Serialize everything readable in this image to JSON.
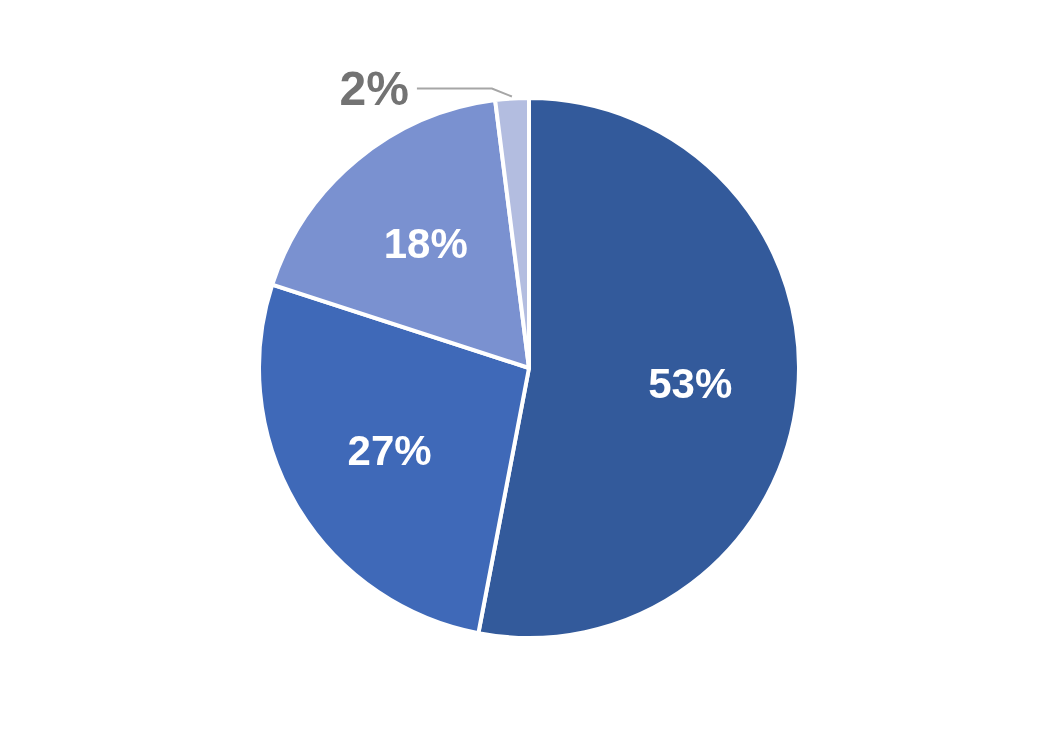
{
  "chart_data": {
    "type": "pie",
    "categories": [
      null,
      null,
      null,
      null
    ],
    "values": [
      53,
      27,
      18,
      2
    ],
    "colors": [
      "#335a9b",
      "#3f69b8",
      "#7a91d0",
      "#b3bde0"
    ],
    "value_labels": [
      "53%",
      "27%",
      "18%",
      "2%"
    ]
  }
}
